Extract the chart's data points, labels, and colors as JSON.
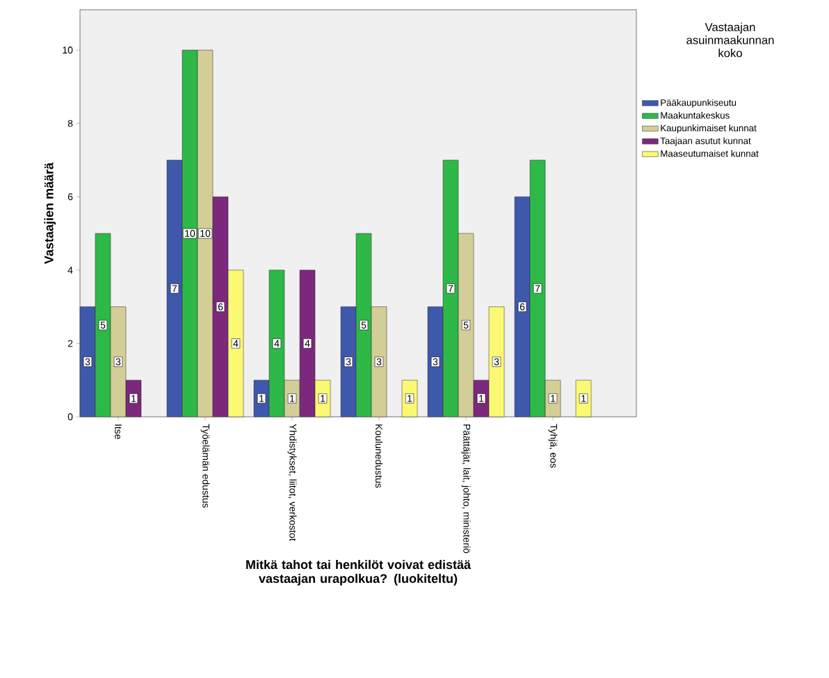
{
  "chart_data": {
    "type": "bar",
    "xlabel": "Mitkä tahot tai henkilöt voivat edistää vastaajan urapolkua? (luokiteltu)",
    "ylabel": "Vastaajien määrä",
    "legend_title": "Vastaajan asuinmaakunnan koko",
    "categories": [
      "Itse",
      "Työelämän edustus",
      "Yhdistykset, liitot, verkostot",
      "Koulunedustus",
      "Päättäjät, lait, johto, ministeriö",
      "Tyhjä, eos"
    ],
    "series": [
      {
        "name": "Pääkaupunkiseutu",
        "color": "#3e58ac",
        "values": [
          3,
          7,
          1,
          3,
          3,
          6
        ]
      },
      {
        "name": "Maakuntakeskus",
        "color": "#2eb848",
        "values": [
          5,
          10,
          4,
          5,
          7,
          7
        ]
      },
      {
        "name": "Kaupunkimaiset kunnat",
        "color": "#d3ce97",
        "values": [
          3,
          10,
          1,
          3,
          5,
          1
        ]
      },
      {
        "name": "Taajaan asutut kunnat",
        "color": "#7c287d",
        "values": [
          1,
          6,
          4,
          null,
          1,
          null
        ]
      },
      {
        "name": "Maaseutumaiset kunnat",
        "color": "#fbf873",
        "values": [
          null,
          4,
          1,
          1,
          3,
          1
        ]
      }
    ],
    "ylim": [
      0,
      11.1
    ],
    "yticks": [
      0,
      2,
      4,
      6,
      8,
      10
    ],
    "data_labels": true,
    "legend": "right",
    "grid": false
  }
}
